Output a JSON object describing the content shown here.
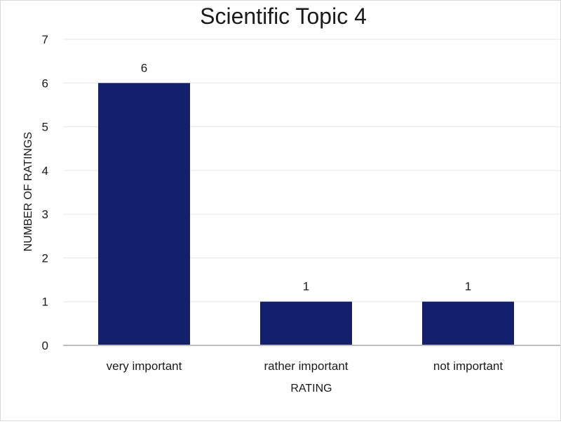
{
  "chart_data": {
    "type": "bar",
    "title": "Scientific Topic 4",
    "xlabel": "RATING",
    "ylabel": "NUMBER OF RATINGS",
    "categories": [
      "very important",
      "rather important",
      "not important"
    ],
    "values": [
      6,
      1,
      1
    ],
    "ylim": [
      0,
      7
    ],
    "yticks": [
      0,
      1,
      2,
      3,
      4,
      5,
      6,
      7
    ],
    "grid": true,
    "legend": "none",
    "bar_color": "#14206b",
    "gridline_color": "#e6e6e6",
    "axis_color": "#bfbfbf"
  }
}
